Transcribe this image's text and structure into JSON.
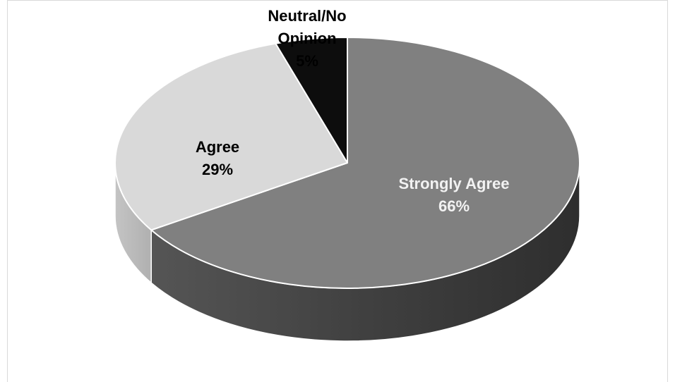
{
  "chart_data": {
    "type": "pie",
    "three_d": true,
    "title": "",
    "slices": [
      {
        "label": "Strongly Agree",
        "percent_label": "66%",
        "value": 66,
        "color": "#808080",
        "side_color": "#3a3a3a",
        "label_color": "#f2f2f2"
      },
      {
        "label": "Agree",
        "percent_label": "29%",
        "value": 29,
        "color": "#d9d9d9",
        "side_color": "#bcbcbc",
        "label_color": "#000000"
      },
      {
        "label": "Neutral/No Opinion",
        "percent_label": "5%",
        "value": 5,
        "color": "#0d0d0d",
        "side_color": "#0d0d0d",
        "label_color": "#000000"
      }
    ],
    "label_lines": {
      "strongly_agree": [
        "Strongly Agree",
        "66%"
      ],
      "agree": [
        "Agree",
        "29%"
      ],
      "neutral": [
        "Neutral/No",
        "Opinion",
        "5%"
      ]
    },
    "legend": "none"
  }
}
